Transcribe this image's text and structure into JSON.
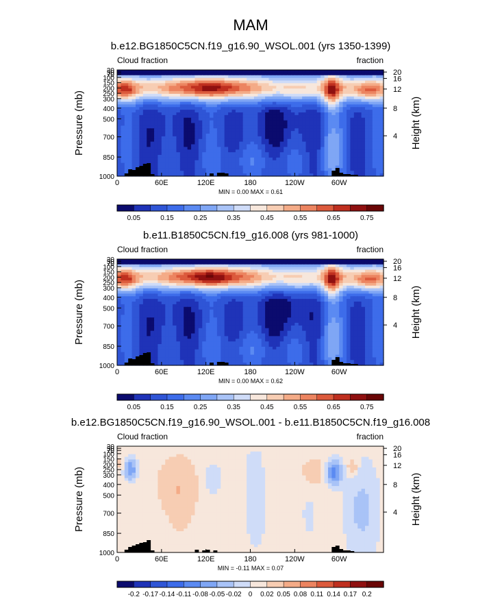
{
  "page_title": "MAM",
  "chart_data": [
    {
      "type": "heatmap",
      "title": "b.e12.BG1850C5CN.f19_g16.90_WSOL.001 (yrs 1350-1399)",
      "left_label": "Cloud fraction",
      "right_label": "fraction",
      "ylabel": "Pressure (mb)",
      "y2label": "Height (km)",
      "xticks": [
        "0",
        "60E",
        "120E",
        "180",
        "120W",
        "60W"
      ],
      "yticks": [
        "30",
        "50",
        "70",
        "100",
        "150",
        "200",
        "250",
        "300",
        "400",
        "500",
        "700",
        "850",
        "1000"
      ],
      "y2ticks": [
        "20",
        "16",
        "12",
        "8",
        "4"
      ],
      "stats": "MIN =   0.00  MAX =   0.61",
      "colorbar_labels": [
        "0.05",
        "0.15",
        "0.25",
        "0.35",
        "0.45",
        "0.55",
        "0.65",
        "0.75"
      ],
      "colorbar_levels": [
        0.05,
        0.1,
        0.15,
        0.2,
        0.25,
        0.3,
        0.35,
        0.4,
        0.45,
        0.5,
        0.55,
        0.6,
        0.65,
        0.7,
        0.75
      ],
      "min": 0.0,
      "max": 0.61
    },
    {
      "type": "heatmap",
      "title": "b.e11.B1850C5CN.f19_g16.008 (yrs 981-1000)",
      "left_label": "Cloud fraction",
      "right_label": "fraction",
      "ylabel": "Pressure (mb)",
      "y2label": "Height (km)",
      "xticks": [
        "0",
        "60E",
        "120E",
        "180",
        "120W",
        "60W"
      ],
      "yticks": [
        "30",
        "50",
        "70",
        "100",
        "150",
        "200",
        "250",
        "300",
        "400",
        "500",
        "700",
        "850",
        "1000"
      ],
      "y2ticks": [
        "20",
        "16",
        "12",
        "8",
        "4"
      ],
      "stats": "MIN =   0.00  MAX =   0.62",
      "colorbar_labels": [
        "0.05",
        "0.15",
        "0.25",
        "0.35",
        "0.45",
        "0.55",
        "0.65",
        "0.75"
      ],
      "colorbar_levels": [
        0.05,
        0.1,
        0.15,
        0.2,
        0.25,
        0.3,
        0.35,
        0.4,
        0.45,
        0.5,
        0.55,
        0.6,
        0.65,
        0.7,
        0.75
      ],
      "min": 0.0,
      "max": 0.62
    },
    {
      "type": "heatmap",
      "title": "b.e12.BG1850C5CN.f19_g16.90_WSOL.001 - b.e11.B1850C5CN.f19_g16.008",
      "left_label": "Cloud fraction",
      "right_label": "fraction",
      "ylabel": "Pressure (mb)",
      "y2label": "Height (km)",
      "xticks": [
        "0",
        "60E",
        "120E",
        "180",
        "120W",
        "60W"
      ],
      "yticks": [
        "30",
        "50",
        "70",
        "100",
        "150",
        "200",
        "250",
        "300",
        "400",
        "500",
        "700",
        "850",
        "1000"
      ],
      "y2ticks": [
        "20",
        "16",
        "12",
        "8",
        "4"
      ],
      "stats": "MIN =  -0.11  MAX =   0.07",
      "colorbar_labels": [
        "-0.2",
        "-0.17",
        "-0.14",
        "-0.11",
        "-0.08",
        "-0.05",
        "-0.02",
        "0",
        "0.02",
        "0.05",
        "0.08",
        "0.11",
        "0.14",
        "0.17",
        "0.2"
      ],
      "colorbar_levels": [
        -0.2,
        -0.17,
        -0.14,
        -0.11,
        -0.08,
        -0.05,
        -0.02,
        0,
        0.02,
        0.05,
        0.08,
        0.11,
        0.14,
        0.17,
        0.2
      ],
      "min": -0.11,
      "max": 0.07
    }
  ],
  "colors": {
    "palette": [
      "#0b0b6e",
      "#1f33b8",
      "#2f55d6",
      "#3d6cea",
      "#5b8af2",
      "#7fa6f5",
      "#a9c3f7",
      "#cfdcf8",
      "#f7e7dc",
      "#f7cdb3",
      "#f4ab87",
      "#ec8460",
      "#dc5a3c",
      "#bf2f1f",
      "#8f1010",
      "#6a0606"
    ],
    "topography": "#000000"
  }
}
